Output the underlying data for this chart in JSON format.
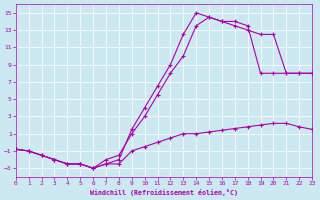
{
  "xlabel": "Windchill (Refroidissement éolien,°C)",
  "bg_color": "#cce8f0",
  "line_color": "#aa00aa",
  "xlim": [
    0,
    23
  ],
  "ylim": [
    -4,
    16
  ],
  "xticks": [
    0,
    1,
    2,
    3,
    4,
    5,
    6,
    7,
    8,
    9,
    10,
    11,
    12,
    13,
    14,
    15,
    16,
    17,
    18,
    19,
    20,
    21,
    22,
    23
  ],
  "yticks": [
    -3,
    -1,
    1,
    3,
    5,
    7,
    9,
    11,
    13,
    15
  ],
  "line1_x": [
    0,
    1,
    2,
    3,
    4,
    5,
    6,
    7,
    8,
    9,
    10,
    11,
    12,
    13,
    14,
    15,
    16,
    17,
    18,
    19,
    20,
    21,
    22,
    23
  ],
  "line1_y": [
    -0.8,
    -1.0,
    -1.5,
    -2.0,
    -2.5,
    -2.5,
    -3.0,
    -2.5,
    -2.5,
    -1.0,
    -0.5,
    0.0,
    0.5,
    1.0,
    1.0,
    1.2,
    1.4,
    1.6,
    1.8,
    2.0,
    2.2,
    2.2,
    1.8,
    1.5
  ],
  "line2_x": [
    0,
    1,
    2,
    3,
    4,
    5,
    6,
    7,
    8,
    9,
    10,
    11,
    12,
    13,
    14,
    15,
    16,
    17,
    18,
    19,
    20,
    21,
    22,
    23
  ],
  "line2_y": [
    -0.8,
    -1.0,
    -1.5,
    -2.0,
    -2.5,
    -2.5,
    -3.0,
    -2.0,
    -1.5,
    1.0,
    3.0,
    5.5,
    8.0,
    10.0,
    13.5,
    14.5,
    14.0,
    13.5,
    13.0,
    12.5,
    12.5,
    8.0,
    8.0,
    8.0
  ],
  "line3_x": [
    0,
    1,
    2,
    3,
    4,
    5,
    6,
    7,
    8,
    9,
    10,
    11,
    12,
    13,
    14,
    15,
    16,
    17,
    18,
    19,
    20,
    21,
    22,
    23
  ],
  "line3_y": [
    -0.8,
    -1.0,
    -1.5,
    -2.0,
    -2.5,
    -2.5,
    -3.0,
    -2.5,
    -2.0,
    1.5,
    4.0,
    6.5,
    9.0,
    12.5,
    15.0,
    14.5,
    14.0,
    14.0,
    13.5,
    8.0,
    8.0,
    8.0,
    8.0,
    8.0
  ]
}
